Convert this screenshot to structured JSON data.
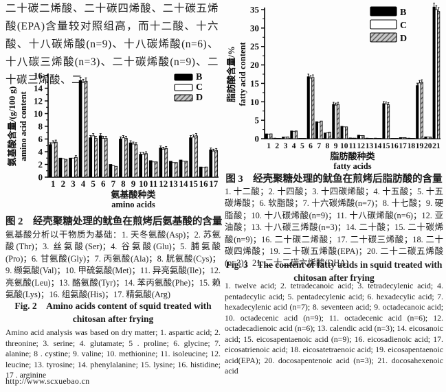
{
  "page": {
    "intro_zh": "二十碳二烯酸、二十碳四烯酸、二十碳五烯酸(EPA)含量较对照组高，而十二酸、十六酸、十八碳烯酸(n=9)、十八碳烯酸(n=6)、十八碳三烯酸(n=3)、二十碳烯酸(n=9)、二十碳三烯酸、二",
    "footer_url": "http://www.scxuebao.cn"
  },
  "colors": {
    "series_b": "#000000",
    "series_c": "#ffffff",
    "d_base": "#c9c9c9",
    "d_hatch": "#5a5a5a",
    "axis": "#000000"
  },
  "figure2": {
    "caption_zh": "图 2　经壳聚糖处理的鱿鱼在煎烤后氨基酸的含量",
    "note_zh": "氨基酸分析以干物质为基础：1. 天冬氨酸(Asp)；2. 苏氨酸(Thr)；3. 丝氨酸(Ser)；4. 谷氨酸(Glu)；5. 脯氨酸(Pro)；6. 甘氨酸(Gly)；7. 丙氨酸(Ala)；8. 胱氨酸(Cys)；9. 缬氨酸(Val)；10. 甲硫氨酸(Met)；11. 异亮氨酸(Ile)；12. 亮氨酸(Leu)；13. 酪氨酸(Tyr)；14. 苯丙氨酸(Phe)；15. 赖氨酸(Lys)；16. 组氨酸(His)；17. 精氨酸(Arg)",
    "caption_en_line1": "Fig. 2　Amino acids content of squid treated with",
    "caption_en_line2": "chitosan after frying",
    "note_en": "Amino acid analysis was based on dry matter; 1. aspartic acid; 2. threonine; 3. serine; 4. glutamate; 5 . proline; 6. glycine; 7. alanine; 8 . cystine; 9. valine; 10. methionine; 11. isoleucine; 12. leucine; 13. tyrosine; 14. phenylalanine; 15. lysine; 16. histidine; 17 . arginine"
  },
  "figure3": {
    "caption_zh": "图 3　经壳聚糖处理的鱿鱼在煎烤后脂肪酸的含量",
    "note_zh": "1. 十二酸；2. 十四酸；3. 十四碳烯酸；4. 十五酸；5. 十五碳烯酸；6. 软脂酸；7. 十六碳烯酸(n=7)；8. 十七酸；9. 硬脂酸；10. 十八碳烯酸(n=9)；11. 十八碳烯酸(n=6)；12. 亚油酸；13. 十八碳三烯酸(n=3)；14. 二十酸；15. 二十碳烯酸(n=9)；16. 二十碳二烯酸；17. 二十碳三烯酸；18. 二十碳四烯酸；19. 二十碳五烯酸(EPA)；20. 二十二碳五烯酸(n=3)；21. 二十二碳六烯酸(DHA)",
    "caption_en_line1": "Fig. 3　The content of fatty acids in squid treated with",
    "caption_en_line2": "chitosan after frying",
    "note_en": "1. twelve acid; 2. tetradecanoic acid; 3. tetradecylenic acid; 4. pentadecylic acid; 5. pentadecylenic acid; 6. hexadecylic acid; 7. hexadecylenic acid (n=7); 8. seventeen acid; 9. octadecanoic acid; 10. octadecenic acid (n=9); 11. octadecenic acid (n=6); 12. octadecadienoic acid (n=6); 13. calendic acid (n=3); 14. eicosanoic acid; 15. eicosapentaenoic acid (n=9); 16. eicosadienoic acid; 17. eicosatrienoic acid; 18. eicosatetraenoic acid; 19. eicosapentaenoic acid(EPA); 20. docosapentenoic acid (n=3); 21. docosahexenoic acid"
  },
  "chart_data": [
    {
      "type": "bar",
      "title": "经壳聚糖处理的鱿鱼在煎烤后氨基酸的含量",
      "categories": [
        "1",
        "2",
        "3",
        "4",
        "5",
        "6",
        "7",
        "8",
        "9",
        "10",
        "11",
        "12",
        "13",
        "14",
        "15",
        "16",
        "17"
      ],
      "series": [
        {
          "name": "B",
          "values": [
            5.1,
            3.0,
            3.0,
            15.2,
            6.2,
            6.5,
            2.0,
            6.0,
            5.4,
            3.6,
            2.6,
            4.6,
            2.5,
            2.7,
            6.2,
            1.6,
            4.3
          ]
        },
        {
          "name": "C",
          "values": [
            5.4,
            2.9,
            3.0,
            14.9,
            6.5,
            6.1,
            1.8,
            6.2,
            5.2,
            3.6,
            2.4,
            4.4,
            2.3,
            2.5,
            6.3,
            1.5,
            4.1
          ]
        },
        {
          "name": "D",
          "values": [
            5.5,
            2.8,
            3.1,
            15.1,
            6.1,
            6.1,
            1.7,
            6.1,
            5.1,
            3.7,
            2.4,
            4.5,
            2.3,
            2.5,
            6.5,
            1.6,
            4.2
          ]
        }
      ],
      "xlabel_zh": "氨基酸种类",
      "xlabel_en": "amino acids",
      "ylabel_zh": "氨基酸含量/(g/100 g)",
      "ylabel_en": "amino acid content",
      "ylim": [
        0,
        16
      ],
      "yticks": [
        0,
        2,
        4,
        6,
        8,
        10,
        12,
        14,
        16
      ],
      "legend": [
        "B",
        "C",
        "D"
      ],
      "legend_position": "top-right",
      "grid": false
    },
    {
      "type": "bar",
      "title": "经壳聚糖处理的鱿鱼在煎烤后脂肪酸的含量",
      "categories": [
        "1",
        "2",
        "3",
        "4",
        "5",
        "6",
        "7",
        "8",
        "9",
        "10",
        "11",
        "12",
        "13",
        "14",
        "15",
        "16",
        "17",
        "18",
        "19",
        "20",
        "21"
      ],
      "series": [
        {
          "name": "B",
          "values": [
            1.3,
            0.15,
            0.45,
            2.1,
            0.1,
            16.8,
            4.6,
            1.55,
            9.3,
            3.35,
            0.2,
            0.95,
            0.15,
            0.15,
            9.5,
            0.1,
            0.3,
            0.15,
            14.4,
            0.5,
            35.7
          ]
        },
        {
          "name": "C",
          "values": [
            1.25,
            0.1,
            0.4,
            2.0,
            0.1,
            16.4,
            4.45,
            1.6,
            9.1,
            3.2,
            0.15,
            0.85,
            0.1,
            0.1,
            9.4,
            0.1,
            0.25,
            0.1,
            15.1,
            0.45,
            35.0
          ]
        },
        {
          "name": "D",
          "values": [
            1.3,
            0.1,
            0.5,
            2.1,
            0.1,
            16.6,
            4.8,
            1.8,
            9.3,
            3.2,
            0.15,
            0.85,
            0.1,
            0.1,
            9.2,
            0.1,
            0.3,
            0.1,
            15.3,
            0.45,
            34.5
          ]
        }
      ],
      "xlabel_zh": "脂肪酸种类",
      "xlabel_en": "fatty acids",
      "ylabel_zh": "脂肪酸含量/%",
      "ylabel_en": "fatty acid content",
      "ylim": [
        0,
        35
      ],
      "yticks": [
        0,
        5,
        10,
        15,
        20,
        25,
        30,
        35
      ],
      "legend": [
        "B",
        "C",
        "D"
      ],
      "legend_position": "top-right",
      "grid": false
    }
  ]
}
